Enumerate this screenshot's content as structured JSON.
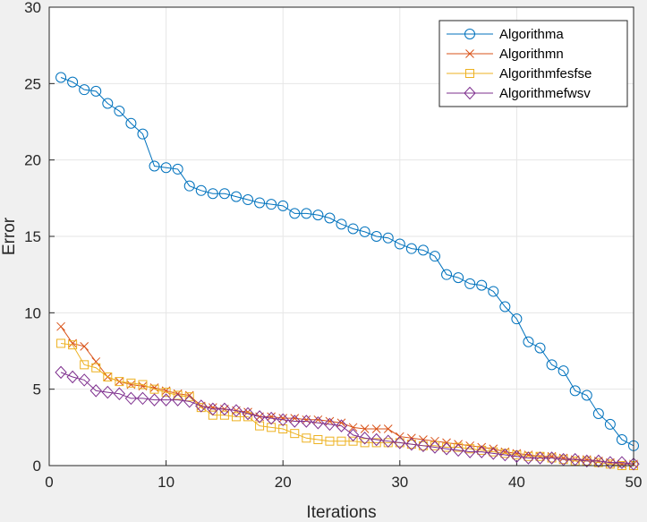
{
  "chart_data": {
    "type": "line",
    "xlabel": "Iterations",
    "ylabel": "Error",
    "xlim": [
      0,
      50
    ],
    "ylim": [
      0,
      30
    ],
    "xticks": [
      "0",
      "10",
      "20",
      "30",
      "40",
      "50"
    ],
    "yticks": [
      "0",
      "5",
      "10",
      "15",
      "20",
      "25",
      "30"
    ],
    "grid": true,
    "legend_position": "top-right",
    "x": [
      1,
      2,
      3,
      4,
      5,
      6,
      7,
      8,
      9,
      10,
      11,
      12,
      13,
      14,
      15,
      16,
      17,
      18,
      19,
      20,
      21,
      22,
      23,
      24,
      25,
      26,
      27,
      28,
      29,
      30,
      31,
      32,
      33,
      34,
      35,
      36,
      37,
      38,
      39,
      40,
      41,
      42,
      43,
      44,
      45,
      46,
      47,
      48,
      49,
      50
    ],
    "series": [
      {
        "name": "Algorithma",
        "color": "#0072BD",
        "marker": "circle",
        "values": [
          25.4,
          25.1,
          24.6,
          24.5,
          23.7,
          23.2,
          22.4,
          21.7,
          19.6,
          19.5,
          19.4,
          18.3,
          18.0,
          17.8,
          17.8,
          17.6,
          17.4,
          17.2,
          17.1,
          17.0,
          16.5,
          16.5,
          16.4,
          16.2,
          15.8,
          15.5,
          15.3,
          15.0,
          14.9,
          14.5,
          14.2,
          14.1,
          13.7,
          12.5,
          12.3,
          11.9,
          11.8,
          11.4,
          10.4,
          9.6,
          8.1,
          7.7,
          6.6,
          6.2,
          4.9,
          4.6,
          3.4,
          2.7,
          1.7,
          1.3
        ]
      },
      {
        "name": "Algorithmn",
        "color": "#D95319",
        "marker": "x",
        "values": [
          9.1,
          8.0,
          7.8,
          6.8,
          5.8,
          5.5,
          5.3,
          5.2,
          5.1,
          4.9,
          4.7,
          4.6,
          3.9,
          3.8,
          3.7,
          3.6,
          3.5,
          3.2,
          3.2,
          3.1,
          3.1,
          3.0,
          3.0,
          2.9,
          2.8,
          2.5,
          2.4,
          2.4,
          2.4,
          1.9,
          1.8,
          1.7,
          1.6,
          1.5,
          1.4,
          1.3,
          1.2,
          1.1,
          0.9,
          0.8,
          0.7,
          0.6,
          0.6,
          0.5,
          0.4,
          0.4,
          0.3,
          0.2,
          0.1,
          0.1
        ]
      },
      {
        "name": "Algorithmfesfse",
        "color": "#EDB120",
        "marker": "square",
        "values": [
          8.0,
          7.9,
          6.6,
          6.4,
          5.8,
          5.5,
          5.4,
          5.3,
          5.0,
          4.8,
          4.6,
          4.5,
          3.8,
          3.3,
          3.3,
          3.2,
          3.2,
          2.6,
          2.5,
          2.4,
          2.1,
          1.8,
          1.7,
          1.6,
          1.6,
          1.6,
          1.5,
          1.5,
          1.5,
          1.5,
          1.4,
          1.3,
          1.3,
          1.2,
          1.2,
          1.1,
          1.0,
          0.9,
          0.8,
          0.7,
          0.6,
          0.6,
          0.5,
          0.4,
          0.3,
          0.3,
          0.2,
          0.1,
          0.0,
          0.0
        ]
      },
      {
        "name": "Algorithmefwsv",
        "color": "#7E2F8E",
        "marker": "diamond",
        "values": [
          6.1,
          5.8,
          5.6,
          4.9,
          4.8,
          4.7,
          4.4,
          4.4,
          4.3,
          4.3,
          4.3,
          4.2,
          3.9,
          3.7,
          3.7,
          3.6,
          3.4,
          3.2,
          3.1,
          3.0,
          2.9,
          2.9,
          2.8,
          2.7,
          2.6,
          2.0,
          1.8,
          1.7,
          1.6,
          1.5,
          1.4,
          1.3,
          1.2,
          1.1,
          1.0,
          0.9,
          0.9,
          0.8,
          0.7,
          0.6,
          0.5,
          0.5,
          0.5,
          0.4,
          0.4,
          0.3,
          0.3,
          0.2,
          0.2,
          0.1
        ]
      }
    ]
  }
}
